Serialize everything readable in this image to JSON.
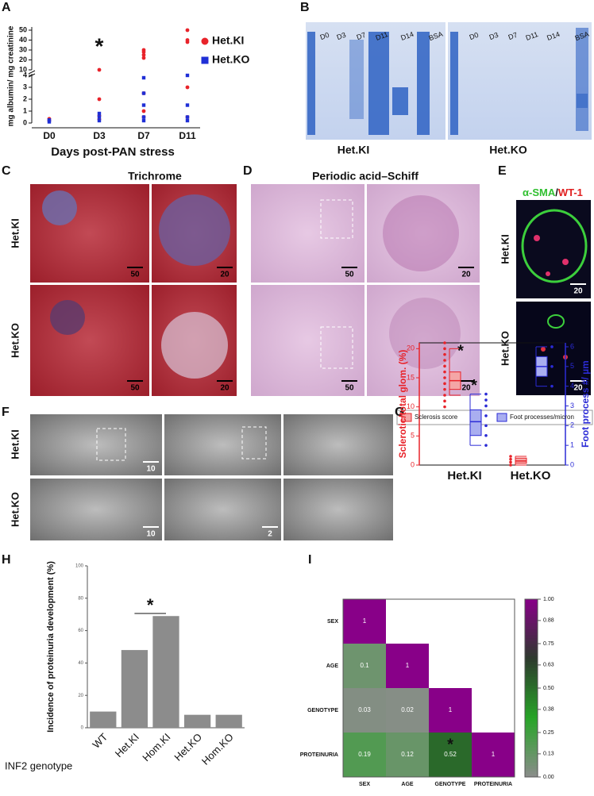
{
  "figure": {
    "panel_labels": [
      "A",
      "B",
      "C",
      "D",
      "E",
      "F",
      "G",
      "H",
      "I"
    ],
    "B": {
      "lanes_ki": [
        "D0",
        "D3",
        "D7",
        "D11",
        "D14",
        "BSA"
      ],
      "lanes_ko": [
        "D0",
        "D3",
        "D7",
        "D11",
        "D14",
        "BSA"
      ],
      "captions": [
        "Het.KI",
        "Het.KO"
      ]
    },
    "C": {
      "title": "Trichrome",
      "rows": [
        "Het.KI",
        "Het.KO"
      ],
      "scale_bars": [
        50,
        20,
        50,
        20
      ]
    },
    "D": {
      "title": "Periodic acid–Schiff",
      "scale_bars": [
        50,
        20,
        50,
        20
      ]
    },
    "E": {
      "title_parts": [
        "α-SMA",
        "/",
        "WT-1"
      ],
      "rows": [
        "Het.KI",
        "Het.KO"
      ],
      "scale_bars": [
        20,
        20
      ]
    },
    "F": {
      "rows": [
        "Het.KI",
        "Het.KO"
      ],
      "scale_bars": [
        10,
        10,
        2
      ]
    }
  },
  "chart_data": [
    {
      "type": "scatter",
      "y_label": "mg albumin/ mg creatinine",
      "x_label": "Days post-PAN stress",
      "categories": [
        "D0",
        "D3",
        "D7",
        "D11"
      ],
      "series": [
        {
          "name": "Het.KI",
          "color": "#e8232a",
          "values": [
            [
              0.2,
              0.35
            ],
            [
              10,
              2,
              0.6,
              0.3
            ],
            [
              30,
              28,
              25,
              22,
              2.5,
              1,
              0.5
            ],
            [
              50,
              40,
              38,
              3,
              0.5
            ]
          ]
        },
        {
          "name": "Het.KO",
          "color": "#1f2fd6",
          "values": [
            [
              0.1,
              0.25
            ],
            [
              0.8,
              0.5,
              0.2
            ],
            [
              3.8,
              2.5,
              1.5,
              0.5,
              0.2
            ],
            [
              4,
              1.5,
              0.5,
              0.2
            ]
          ]
        }
      ],
      "ylim": [
        0,
        50
      ],
      "ybreak": [
        4,
        10
      ],
      "yticks": [
        0,
        1,
        2,
        3,
        4,
        10,
        20,
        30,
        40,
        50
      ],
      "annotation": "*"
    },
    {
      "type": "box",
      "categories": [
        "Het.KI",
        "Het.KO"
      ],
      "y_label": "Sclerotic/total glom. (%)",
      "y2_label": "Foot process #/ µm",
      "ylim": [
        0,
        21
      ],
      "yticks": [
        0,
        5,
        10,
        15,
        20
      ],
      "y2lim": [
        0,
        6.2
      ],
      "y2ticks": [
        0,
        1,
        2,
        3,
        4,
        5,
        6
      ],
      "series": [
        {
          "name": "Sclerosis score",
          "color": "#e8232a",
          "box": [
            [
              12,
              13,
              14.5,
              16,
              20
            ],
            [
              0,
              0.3,
              0.7,
              1.2,
              1.5
            ]
          ],
          "points": [
            [
              10,
              11,
              12,
              13,
              14,
              15,
              16,
              17,
              18,
              19,
              20,
              21
            ],
            [
              0,
              0.5,
              1,
              1.5
            ]
          ]
        },
        {
          "name": "Foot processes/micron",
          "color": "#2b2bd6",
          "axis": "y2",
          "box": [
            [
              1,
              1.5,
              2.2,
              2.8,
              3.6
            ],
            [
              4,
              4.5,
              5,
              5.5,
              6
            ]
          ],
          "points": [
            [
              1,
              1.5,
              2,
              2.5,
              3,
              3.3,
              3.6
            ],
            [
              4,
              5,
              6
            ]
          ]
        }
      ],
      "annotations": [
        "*",
        "*"
      ]
    },
    {
      "type": "bar",
      "y_label": "Incidence of proteinuria development (%)",
      "x_label": "INF2 genotype",
      "categories": [
        "WT",
        "Het.KI",
        "Hom.KI",
        "Het.KO",
        "Hom.KO"
      ],
      "values": [
        10,
        48,
        69,
        8,
        8
      ],
      "color": "#8c8c8c",
      "ylim": [
        0,
        100
      ],
      "yticks": [
        0,
        20,
        40,
        60,
        80,
        100
      ],
      "annotation": "*"
    },
    {
      "type": "heatmap",
      "categories": [
        "SEX",
        "AGE",
        "GENOTYPE",
        "PROTEINURIA"
      ],
      "values": [
        [
          1
        ],
        [
          0.1,
          1
        ],
        [
          0.03,
          0.02,
          1
        ],
        [
          0.19,
          0.12,
          0.52,
          1
        ]
      ],
      "colors": [
        "#8c8c8c",
        "#27a527",
        "#2d3a2d",
        "#880088"
      ],
      "clim": [
        0,
        1
      ],
      "colorbar_ticks": [
        {
          "value": 0,
          "label": "0.00"
        },
        0.13,
        0.25,
        0.38,
        {
          "value": 0.5,
          "label": "0.50"
        },
        0.63,
        {
          "value": 0.75,
          "label": "0.75"
        },
        0.88,
        {
          "value": 1,
          "label": "1.00"
        }
      ],
      "annotation": "*"
    }
  ]
}
